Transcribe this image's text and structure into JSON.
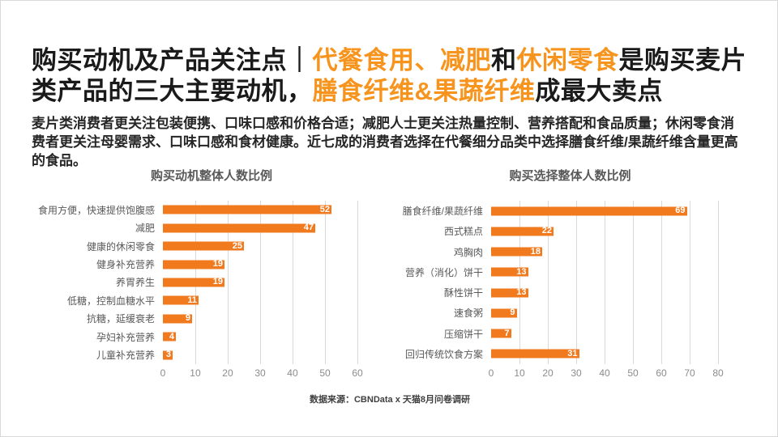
{
  "slide": {
    "title_segments": [
      {
        "text": "购买动机及产品关注点｜",
        "accent": false
      },
      {
        "text": "代餐食用、减肥",
        "accent": true
      },
      {
        "text": "和",
        "accent": false
      },
      {
        "text": "休闲零食",
        "accent": true
      },
      {
        "text": "是购买麦片类产品的三大主要动机，",
        "accent": false
      },
      {
        "text": "膳食纤维&果蔬纤维",
        "accent": true
      },
      {
        "text": "成最大卖点",
        "accent": false
      }
    ],
    "subtitle": "麦片类消费者更关注包装便携、口味口感和价格合适；减肥人士更关注热量控制、营养搭配和食品质量；休闲零食消费者更关注母婴需求、口味口感和食材健康。近七成的消费者选择在代餐细分品类中选择膳食纤维/果蔬纤维含量更高的食品。",
    "footer_source": "数据来源：CBNData x 天猫8月问卷调研"
  },
  "colors": {
    "accent": "#F7941E",
    "bar": "#F27A1E",
    "title_text": "#1A1A1A",
    "chart_title": "#595959",
    "gridline": "#D9D9D9"
  },
  "chart_data": [
    {
      "type": "bar",
      "orientation": "horizontal",
      "title": "购买动机整体人数比例",
      "categories": [
        "食用方便，快速提供饱腹感",
        "减肥",
        "健康的休闲零食",
        "健身补充营养",
        "养胃养生",
        "低糖，控制血糖水平",
        "抗糖，延缓衰老",
        "孕妇补充营养",
        "儿童补充营养"
      ],
      "values": [
        52,
        47,
        25,
        19,
        19,
        11,
        9,
        4,
        3
      ],
      "xlim": [
        0,
        60
      ],
      "tick_step": 10,
      "grid": true,
      "value_labels": "inside-end",
      "legend": "none"
    },
    {
      "type": "bar",
      "orientation": "horizontal",
      "title": "购买选择整体人数比例",
      "categories": [
        "膳食纤维/果蔬纤维",
        "西式糕点",
        "鸡胸肉",
        "营养（消化）饼干",
        "酥性饼干",
        "速食粥",
        "压缩饼干",
        "回归传统饮食方案"
      ],
      "values": [
        69,
        22,
        18,
        13,
        13,
        9,
        7,
        31
      ],
      "xlim": [
        0,
        80
      ],
      "tick_step": 10,
      "grid": true,
      "value_labels": "inside-end",
      "legend": "none"
    }
  ]
}
